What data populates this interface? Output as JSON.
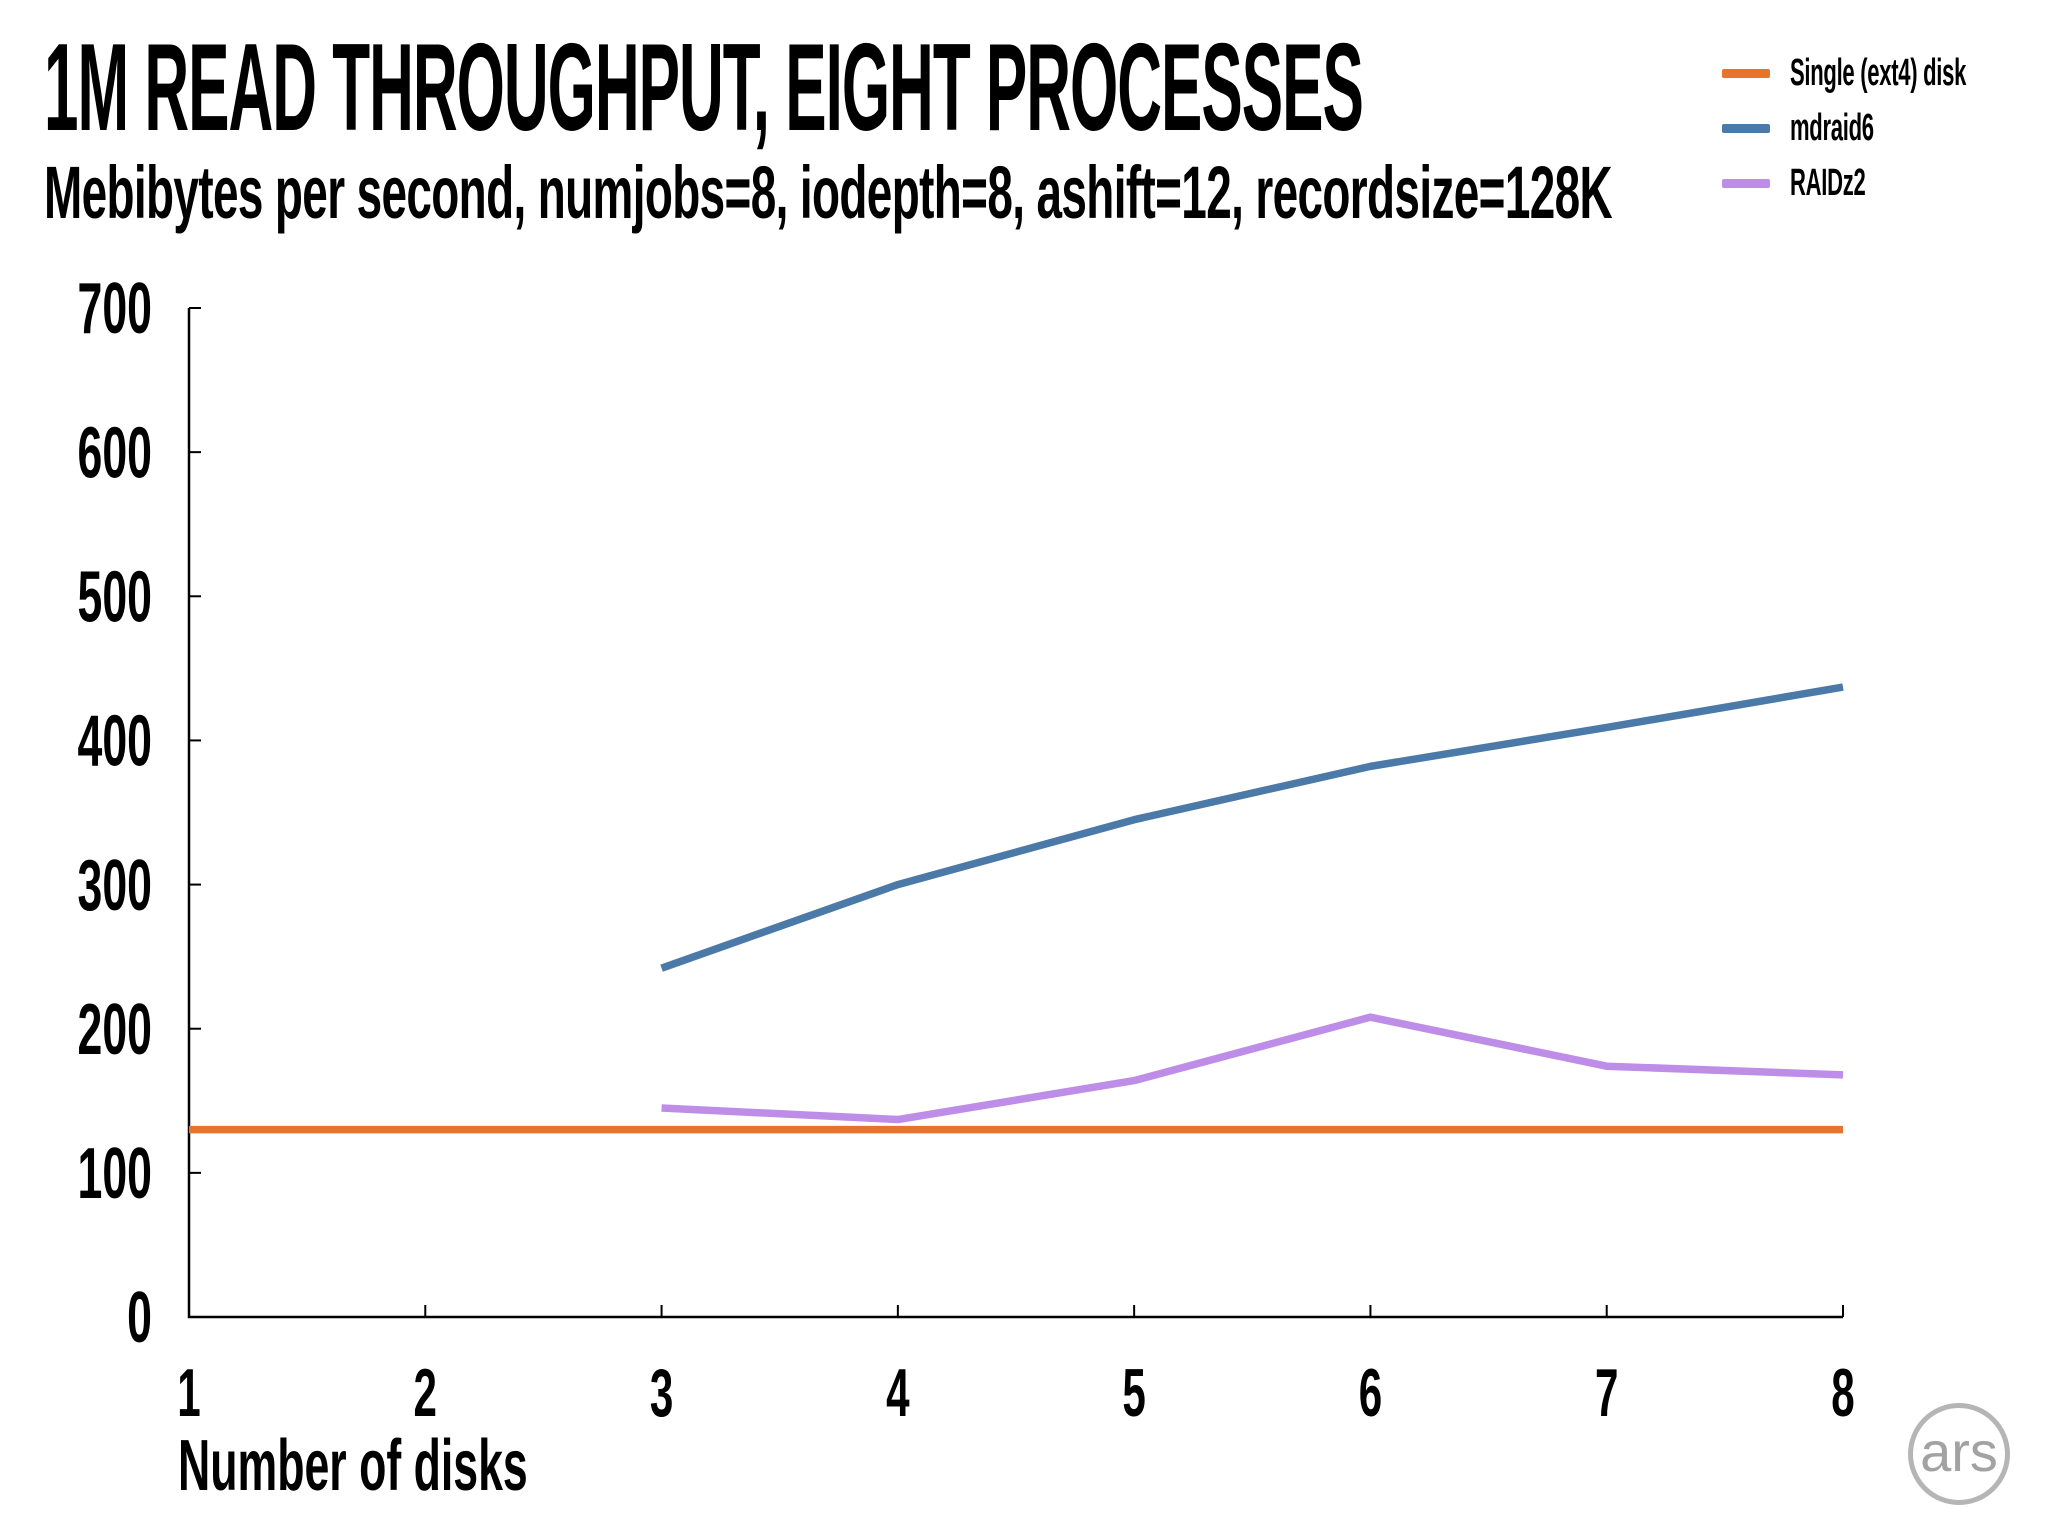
{
  "header": {
    "title": "1M READ THROUGHPUT, EIGHT PROCESSES",
    "subtitle": "Mebibytes per second, numjobs=8, iodepth=8, ashift=12, recordsize=128K"
  },
  "legend": {
    "position": "top-right",
    "items": [
      {
        "label": "Single (ext4) disk",
        "color": "#e8732d"
      },
      {
        "label": "mdraid6",
        "color": "#4b79a8"
      },
      {
        "label": "RAIDz2",
        "color": "#be8de8"
      }
    ]
  },
  "chart_data": {
    "type": "line",
    "title": "1M READ THROUGHPUT, EIGHT PROCESSES",
    "subtitle": "Mebibytes per second, numjobs=8, iodepth=8, ashift=12, recordsize=128K",
    "xlabel": "Number of disks",
    "ylabel": "",
    "xlim": [
      1,
      8
    ],
    "ylim": [
      0,
      700
    ],
    "x_ticks": [
      1,
      2,
      3,
      4,
      5,
      6,
      7,
      8
    ],
    "y_ticks": [
      0,
      100,
      200,
      300,
      400,
      500,
      600,
      700
    ],
    "grid": false,
    "tick_direction": "in",
    "series": [
      {
        "name": "Single (ext4) disk",
        "color": "#e8732d",
        "x": [
          1,
          2,
          3,
          4,
          5,
          6,
          7,
          8
        ],
        "values": [
          130,
          130,
          130,
          130,
          130,
          130,
          130,
          130
        ]
      },
      {
        "name": "mdraid6",
        "color": "#4b79a8",
        "x": [
          3,
          4,
          5,
          6,
          7,
          8
        ],
        "values": [
          242,
          300,
          345,
          382,
          409,
          437
        ]
      },
      {
        "name": "RAIDz2",
        "color": "#be8de8",
        "x": [
          3,
          4,
          5,
          6,
          7,
          8
        ],
        "values": [
          145,
          137,
          164,
          208,
          174,
          168
        ]
      }
    ]
  },
  "branding": {
    "logo_text": "ars"
  }
}
